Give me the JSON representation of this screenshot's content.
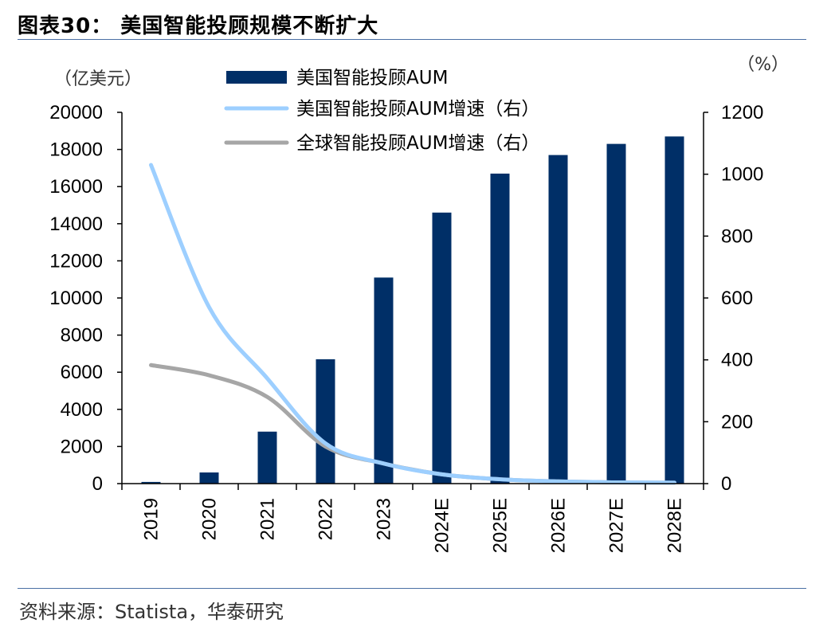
{
  "title": "图表30：  美国智能投顾规模不断扩大",
  "source": "资料来源：Statista，华泰研究",
  "chart_data": {
    "type": "bar+line",
    "categories": [
      "2019",
      "2020",
      "2021",
      "2022",
      "2023",
      "2024E",
      "2025E",
      "2026E",
      "2027E",
      "2028E"
    ],
    "left_axis": {
      "label": "（亿美元）",
      "ylim": [
        0,
        20000
      ],
      "ticks": [
        0,
        2000,
        4000,
        6000,
        8000,
        10000,
        12000,
        14000,
        16000,
        18000,
        20000
      ]
    },
    "right_axis": {
      "label": "（%）",
      "ylim": [
        0,
        1200
      ],
      "ticks": [
        0,
        200,
        400,
        600,
        800,
        1000,
        1200
      ]
    },
    "series": [
      {
        "name": "美国智能投顾AUM",
        "kind": "bar",
        "axis": "left",
        "color": "#002f67",
        "values": [
          90,
          600,
          2800,
          6700,
          11100,
          14600,
          16700,
          17700,
          18300,
          18700
        ]
      },
      {
        "name": "美国智能投顾AUM增速（右）",
        "kind": "line",
        "axis": "right",
        "color": "#9dcfff",
        "values": [
          1030,
          570,
          340,
          130,
          65,
          30,
          14,
          7,
          4,
          3
        ]
      },
      {
        "name": "全球智能投顾AUM增速（右）",
        "kind": "line",
        "axis": "right",
        "color": "#a6a6a6",
        "values": [
          383,
          350,
          280,
          120,
          65,
          30,
          14,
          7,
          4,
          3
        ]
      }
    ],
    "grid": false,
    "legend": "top-center"
  }
}
